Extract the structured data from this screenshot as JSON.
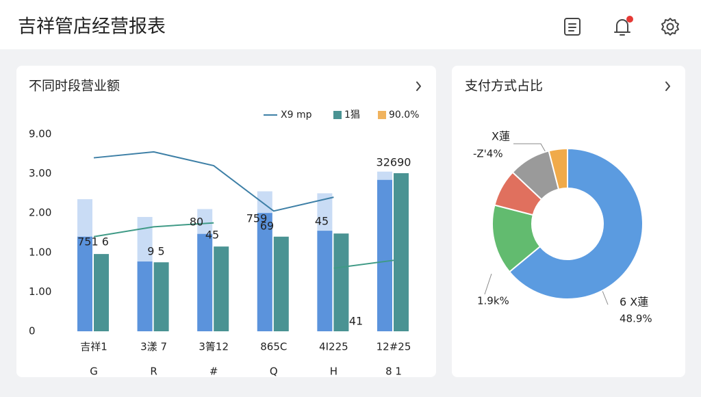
{
  "header": {
    "title": "吉祥管店经营报表"
  },
  "chart_data": [
    {
      "type": "bar",
      "title": "不同时段营业额",
      "categories": [
        "吉祥1",
        "3漾 7",
        "3箐12",
        "865C",
        "4I225",
        "12#25"
      ],
      "x_sublabels": [
        "G",
        "R",
        "#",
        "Q",
        "H",
        "8 1"
      ],
      "ylim": [
        0,
        5
      ],
      "yticks": [
        {
          "value": 0,
          "label": "0"
        },
        {
          "value": 1,
          "label": "1.00"
        },
        {
          "value": 2,
          "label": "1.00"
        },
        {
          "value": 3,
          "label": "2.00"
        },
        {
          "value": 4,
          "label": "3.00"
        },
        {
          "value": 5,
          "label": "9.00"
        }
      ],
      "grid": false,
      "legend": [
        {
          "label": "X9 mp",
          "color": "#3d7fa6",
          "marker": "line"
        },
        {
          "label": "1猖",
          "color": "#4a9393",
          "marker": "square"
        },
        {
          "label": "90.0%",
          "color": "#f0b35e",
          "marker": "square"
        }
      ],
      "series": [
        {
          "type": "bar",
          "color": "#c9dcf5",
          "values": [
            3.35,
            2.9,
            3.1,
            3.55,
            3.5,
            4.05
          ]
        },
        {
          "type": "bar",
          "color": "#5b93dc",
          "values": [
            2.4,
            1.77,
            2.47,
            3.0,
            2.55,
            3.84
          ]
        },
        {
          "type": "bar",
          "color": "#4a9393",
          "values": [
            1.96,
            1.75,
            2.15,
            2.4,
            2.48,
            4.01
          ]
        },
        {
          "type": "line",
          "color": "#3d7fa6",
          "values": [
            4.4,
            4.55,
            4.2,
            3.05,
            3.4,
            null
          ]
        },
        {
          "type": "line",
          "color": "#3f9a86",
          "values": [
            2.4,
            2.65,
            2.75,
            null,
            1.6,
            1.8
          ]
        }
      ],
      "annotations": [
        "751 6",
        "9 5",
        "80",
        "45",
        "759",
        "69",
        "45",
        "32690",
        "41"
      ]
    },
    {
      "type": "pie",
      "title": "支付方式占比",
      "categories": [
        "6 X蓮",
        null,
        null,
        null,
        "X蓮"
      ],
      "values": [
        64,
        15,
        8,
        9,
        4
      ],
      "colors": [
        "#5b9be0",
        "#62bb6f",
        "#e0705e",
        "#9a9a9a",
        "#f0aa4a"
      ],
      "annotations": [
        "48.9%",
        "1.9k%",
        "-Z'4%"
      ]
    }
  ]
}
